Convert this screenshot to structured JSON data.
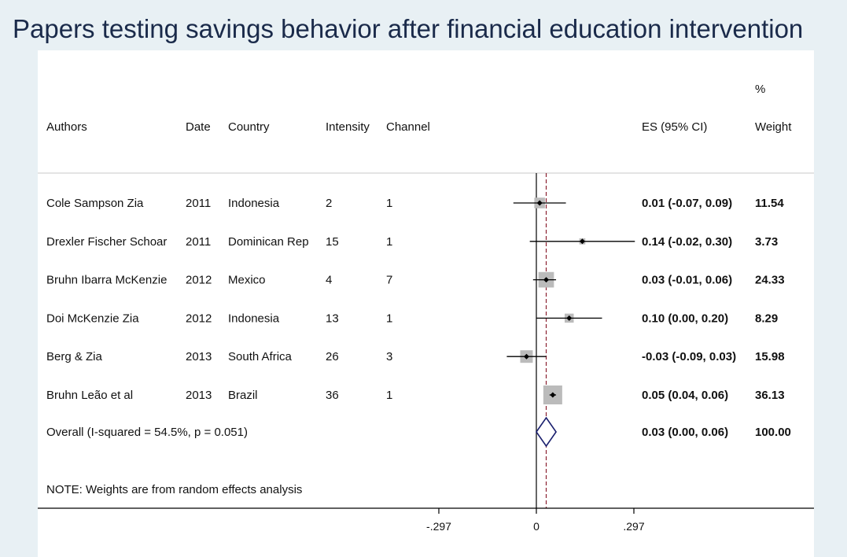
{
  "title": "Papers testing savings behavior after financial education intervention",
  "chart_data": {
    "type": "forest",
    "headers": {
      "authors": "Authors",
      "date": "Date",
      "country": "Country",
      "intensity": "Intensity",
      "channel": "Channel",
      "es": "ES (95% CI)",
      "weight_top": "%",
      "weight": "Weight"
    },
    "studies": [
      {
        "authors": "Cole Sampson Zia",
        "date": "2011",
        "country": "Indonesia",
        "intensity": "2",
        "channel": "1",
        "es": 0.01,
        "lo": -0.07,
        "hi": 0.09,
        "es_label": "0.01 (-0.07, 0.09)",
        "weight": 11.54,
        "weight_label": "11.54"
      },
      {
        "authors": "Drexler Fischer Schoar",
        "date": "2011",
        "country": "Dominican Rep",
        "intensity": "15",
        "channel": "1",
        "es": 0.14,
        "lo": -0.02,
        "hi": 0.3,
        "es_label": "0.14 (-0.02, 0.30)",
        "weight": 3.73,
        "weight_label": "3.73"
      },
      {
        "authors": "Bruhn Ibarra McKenzie",
        "date": "2012",
        "country": "Mexico",
        "intensity": "4",
        "channel": "7",
        "es": 0.03,
        "lo": -0.01,
        "hi": 0.06,
        "es_label": "0.03 (-0.01, 0.06)",
        "weight": 24.33,
        "weight_label": "24.33"
      },
      {
        "authors": "Doi McKenzie Zia",
        "date": "2012",
        "country": "Indonesia",
        "intensity": "13",
        "channel": "1",
        "es": 0.1,
        "lo": 0.0,
        "hi": 0.2,
        "es_label": "0.10 (0.00, 0.20)",
        "weight": 8.29,
        "weight_label": "8.29"
      },
      {
        "authors": "Berg & Zia",
        "date": "2013",
        "country": "South Africa",
        "intensity": "26",
        "channel": "3",
        "es": -0.03,
        "lo": -0.09,
        "hi": 0.03,
        "es_label": "-0.03 (-0.09, 0.03)",
        "weight": 15.98,
        "weight_label": "15.98"
      },
      {
        "authors": "Bruhn Leão et al",
        "date": "2013",
        "country": "Brazil",
        "intensity": "36",
        "channel": "1",
        "es": 0.05,
        "lo": 0.04,
        "hi": 0.06,
        "es_label": "0.05 (0.04, 0.06)",
        "weight": 36.13,
        "weight_label": "36.13"
      }
    ],
    "overall": {
      "label": "Overall  (I-squared = 54.5%, p = 0.051)",
      "es": 0.03,
      "lo": 0.0,
      "hi": 0.06,
      "es_label": "0.03 (0.00, 0.06)",
      "weight_label": "100.00"
    },
    "note": "NOTE: Weights are from random effects analysis",
    "x_ticks": [
      -0.297,
      0,
      0.297
    ],
    "x_tick_labels": [
      "-.297",
      "0",
      ".297"
    ],
    "xlim": [
      -0.3,
      0.3
    ],
    "colors": {
      "box": "#bbbbbb",
      "diamond": "#1a1f6e",
      "ref_line": "#8b2030",
      "line": "#000000"
    }
  }
}
